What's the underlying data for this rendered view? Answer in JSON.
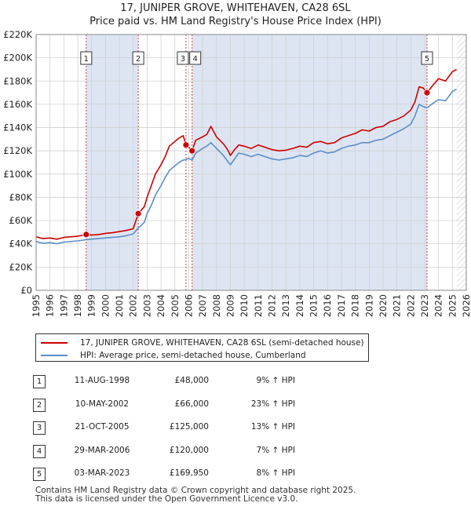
{
  "chart_data": {
    "type": "line",
    "title": "17, JUNIPER GROVE, WHITEHAVEN, CA28 6SL",
    "subtitle": "Price paid vs. HM Land Registry's House Price Index (HPI)",
    "xlim": [
      1995,
      2026
    ],
    "ylim": [
      0,
      220000
    ],
    "x_ticks": [
      "1995",
      "1996",
      "1997",
      "1998",
      "1999",
      "2000",
      "2001",
      "2002",
      "2003",
      "2004",
      "2005",
      "2006",
      "2007",
      "2008",
      "2009",
      "2010",
      "2011",
      "2012",
      "2013",
      "2014",
      "2015",
      "2016",
      "2017",
      "2018",
      "2019",
      "2020",
      "2021",
      "2022",
      "2023",
      "2024",
      "2025",
      "2026"
    ],
    "y_ticks": [
      {
        "value": 0,
        "label": "£0"
      },
      {
        "value": 20000,
        "label": "£20K"
      },
      {
        "value": 40000,
        "label": "£40K"
      },
      {
        "value": 60000,
        "label": "£60K"
      },
      {
        "value": 80000,
        "label": "£80K"
      },
      {
        "value": 100000,
        "label": "£100K"
      },
      {
        "value": 120000,
        "label": "£120K"
      },
      {
        "value": 140000,
        "label": "£140K"
      },
      {
        "value": 160000,
        "label": "£160K"
      },
      {
        "value": 180000,
        "label": "£180K"
      },
      {
        "value": 200000,
        "label": "£200K"
      },
      {
        "value": 220000,
        "label": "£220K"
      }
    ],
    "grid": true,
    "future_hatch_from": 2025.3,
    "series": [
      {
        "name": "17, JUNIPER GROVE, WHITEHAVEN, CA28 6SL (semi-detached house)",
        "color": "#cc0000",
        "x": [
          1995,
          1995.5,
          1996,
          1996.5,
          1997,
          1997.5,
          1998,
          1998.6,
          1999,
          1999.5,
          2000,
          2000.5,
          2001,
          2001.5,
          2002,
          2002.36,
          2002.8,
          2003,
          2003.3,
          2003.6,
          2004,
          2004.3,
          2004.6,
          2005,
          2005.3,
          2005.6,
          2005.8,
          2006,
          2006.24,
          2006.5,
          2007,
          2007.3,
          2007.6,
          2008,
          2008.5,
          2008.8,
          2009,
          2009.3,
          2009.6,
          2010,
          2010.5,
          2011,
          2011.5,
          2012,
          2012.5,
          2013,
          2013.5,
          2014,
          2014.5,
          2015,
          2015.5,
          2016,
          2016.5,
          2017,
          2017.5,
          2018,
          2018.5,
          2019,
          2019.5,
          2020,
          2020.5,
          2021,
          2021.5,
          2022,
          2022.3,
          2022.6,
          2022.9,
          2023.17,
          2023.5,
          2024,
          2024.5,
          2025,
          2025.3
        ],
        "values": [
          46000,
          44500,
          45000,
          44000,
          45500,
          46000,
          46500,
          48000,
          47500,
          48000,
          49000,
          49500,
          50500,
          51500,
          53000,
          66000,
          72000,
          80000,
          90000,
          100000,
          108000,
          115000,
          124000,
          128000,
          131000,
          133000,
          125000,
          123000,
          120000,
          129000,
          132000,
          134000,
          141000,
          132000,
          126000,
          121000,
          116000,
          121000,
          125000,
          124000,
          122000,
          125000,
          123000,
          121000,
          120000,
          120500,
          122000,
          124000,
          123000,
          127000,
          128000,
          126000,
          127000,
          131000,
          133000,
          135000,
          138000,
          137000,
          140000,
          141000,
          145000,
          147000,
          150000,
          155000,
          162000,
          175000,
          174000,
          169950,
          175000,
          182000,
          180000,
          188000,
          190000
        ]
      },
      {
        "name": "HPI: Average price, semi-detached house, Cumberland",
        "color": "#5b8fc8",
        "x": [
          1995,
          1995.5,
          1996,
          1996.5,
          1997,
          1997.5,
          1998,
          1998.6,
          1999,
          1999.5,
          2000,
          2000.5,
          2001,
          2001.5,
          2002,
          2002.36,
          2002.8,
          2003,
          2003.3,
          2003.6,
          2004,
          2004.3,
          2004.6,
          2005,
          2005.3,
          2005.6,
          2005.8,
          2006,
          2006.24,
          2006.5,
          2007,
          2007.3,
          2007.6,
          2008,
          2008.5,
          2008.8,
          2009,
          2009.3,
          2009.6,
          2010,
          2010.5,
          2011,
          2011.5,
          2012,
          2012.5,
          2013,
          2013.5,
          2014,
          2014.5,
          2015,
          2015.5,
          2016,
          2016.5,
          2017,
          2017.5,
          2018,
          2018.5,
          2019,
          2019.5,
          2020,
          2020.5,
          2021,
          2021.5,
          2022,
          2022.3,
          2022.6,
          2022.9,
          2023.17,
          2023.5,
          2024,
          2024.5,
          2025,
          2025.3
        ],
        "values": [
          42000,
          40500,
          41000,
          40000,
          41500,
          42000,
          42500,
          43500,
          44000,
          44500,
          45000,
          45500,
          46000,
          47000,
          48500,
          53500,
          58500,
          66000,
          73000,
          82000,
          90000,
          97000,
          103000,
          107000,
          110000,
          112000,
          112500,
          113500,
          112000,
          118000,
          122000,
          124000,
          127000,
          122000,
          116000,
          111000,
          108000,
          113000,
          118000,
          117000,
          115000,
          117000,
          115000,
          113000,
          112000,
          113000,
          114000,
          116000,
          115000,
          118000,
          120000,
          118000,
          119000,
          122000,
          124000,
          125000,
          127000,
          127000,
          129000,
          130000,
          133000,
          136000,
          139000,
          143000,
          150000,
          160000,
          158000,
          157000,
          160000,
          164000,
          163000,
          171000,
          173000
        ]
      }
    ],
    "markers": [
      {
        "id": "1",
        "x": 1998.61,
        "value": 48000
      },
      {
        "id": "2",
        "x": 2002.36,
        "value": 66000
      },
      {
        "id": "3",
        "x": 2005.8,
        "value": 125000
      },
      {
        "id": "4",
        "x": 2006.24,
        "value": 120000
      },
      {
        "id": "5",
        "x": 2023.17,
        "value": 169950
      }
    ]
  },
  "legend": {
    "property_label": "17, JUNIPER GROVE, WHITEHAVEN, CA28 6SL (semi-detached house)",
    "hpi_label": "HPI: Average price, semi-detached house, Cumberland",
    "property_color": "#cc0000",
    "hpi_color": "#5b8fc8"
  },
  "transactions": [
    {
      "num": "1",
      "date": "11-AUG-1998",
      "price": "£48,000",
      "hpi": "9% ↑ HPI"
    },
    {
      "num": "2",
      "date": "10-MAY-2002",
      "price": "£66,000",
      "hpi": "23% ↑ HPI"
    },
    {
      "num": "3",
      "date": "21-OCT-2005",
      "price": "£125,000",
      "hpi": "13% ↑ HPI"
    },
    {
      "num": "4",
      "date": "29-MAR-2006",
      "price": "£120,000",
      "hpi": "7% ↑ HPI"
    },
    {
      "num": "5",
      "date": "03-MAR-2023",
      "price": "£169,950",
      "hpi": "8% ↑ HPI"
    }
  ],
  "footer": {
    "line1": "Contains HM Land Registry data © Crown copyright and database right 2025.",
    "line2": "This data is licensed under the Open Government Licence v3.0."
  }
}
